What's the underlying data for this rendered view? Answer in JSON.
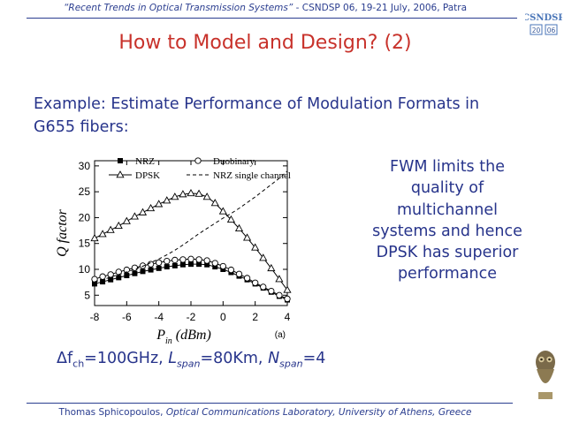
{
  "header": {
    "quote": "“Recent Trends in Optical Transmission Systems”",
    "venue": " - CSNDSP 06, 19-21 July, 2006, Patra"
  },
  "logo": {
    "name": "CSNDSP",
    "year_left": "20",
    "year_right": "06"
  },
  "title": "How to Model and Design? (2)",
  "example": "Example: Estimate Performance of Modulation Formats in G655 fibers:",
  "side_text": "FWM limits the quality of multichannel systems and hence DPSK has superior performance",
  "params": {
    "df": "Δf",
    "df_sub": "ch",
    "df_val": "=100GHz, ",
    "l": "L",
    "l_sub": "span",
    "l_val": "=80Km, ",
    "n": "N",
    "n_sub": "span",
    "n_val": "=4"
  },
  "footer": {
    "author": "Thomas Sphicopoulos, ",
    "lab": "Optical Communications Laboratory, University of Athens, Greece"
  },
  "colors": {
    "title": "#c8322b",
    "text": "#27348b",
    "header": "#2a3d8f"
  },
  "chart_data": {
    "type": "line",
    "panel_label": "(a)",
    "xlabel_main": "P",
    "xlabel_sub": "in",
    "xlabel_unit": " (dBm)",
    "ylabel": "Q factor",
    "xlim": [
      -8,
      4
    ],
    "ylim": [
      3,
      31
    ],
    "xticks": [
      -8,
      -6,
      -4,
      -2,
      0,
      2,
      4
    ],
    "yticks": [
      5,
      10,
      15,
      20,
      25,
      30
    ],
    "grid": false,
    "legend_position": "top",
    "x": [
      -8,
      -7.5,
      -7,
      -6.5,
      -6,
      -5.5,
      -5,
      -4.5,
      -4,
      -3.5,
      -3,
      -2.5,
      -2,
      -1.5,
      -1,
      -0.5,
      0,
      0.5,
      1,
      1.5,
      2,
      2.5,
      3,
      3.5,
      4
    ],
    "series": [
      {
        "name": "NRZ",
        "marker": "square-filled",
        "dash": "solid",
        "values": [
          7.2,
          7.6,
          8.0,
          8.4,
          8.8,
          9.2,
          9.6,
          9.9,
          10.2,
          10.5,
          10.7,
          10.9,
          11.0,
          11.0,
          10.9,
          10.5,
          10.0,
          9.4,
          8.7,
          8.0,
          7.2,
          6.4,
          5.6,
          4.8,
          4.1
        ]
      },
      {
        "name": "Duobinary",
        "marker": "circle-open",
        "dash": "solid",
        "values": [
          8.1,
          8.6,
          9.0,
          9.5,
          9.9,
          10.3,
          10.7,
          11.0,
          11.3,
          11.6,
          11.8,
          11.9,
          12.0,
          11.9,
          11.7,
          11.2,
          10.6,
          9.9,
          9.1,
          8.3,
          7.4,
          6.6,
          5.8,
          5.0,
          4.3
        ]
      },
      {
        "name": "DPSK",
        "marker": "triangle-open",
        "dash": "solid",
        "values": [
          16.0,
          16.8,
          17.6,
          18.4,
          19.3,
          20.2,
          21.0,
          21.8,
          22.6,
          23.3,
          24.0,
          24.5,
          24.7,
          24.6,
          24.0,
          22.8,
          21.2,
          19.6,
          17.9,
          16.1,
          14.2,
          12.2,
          10.2,
          8.1,
          6.0
        ]
      },
      {
        "name": "NRZ single channel",
        "marker": "none",
        "dash": "dashed",
        "values": [
          7.6,
          8.0,
          8.5,
          9.0,
          9.5,
          10.0,
          10.6,
          11.3,
          12.0,
          12.8,
          13.7,
          14.7,
          15.8,
          16.9,
          17.9,
          18.9,
          19.9,
          20.8,
          21.8,
          22.9,
          24.0,
          25.2,
          26.4,
          27.6,
          29.0
        ]
      }
    ]
  }
}
